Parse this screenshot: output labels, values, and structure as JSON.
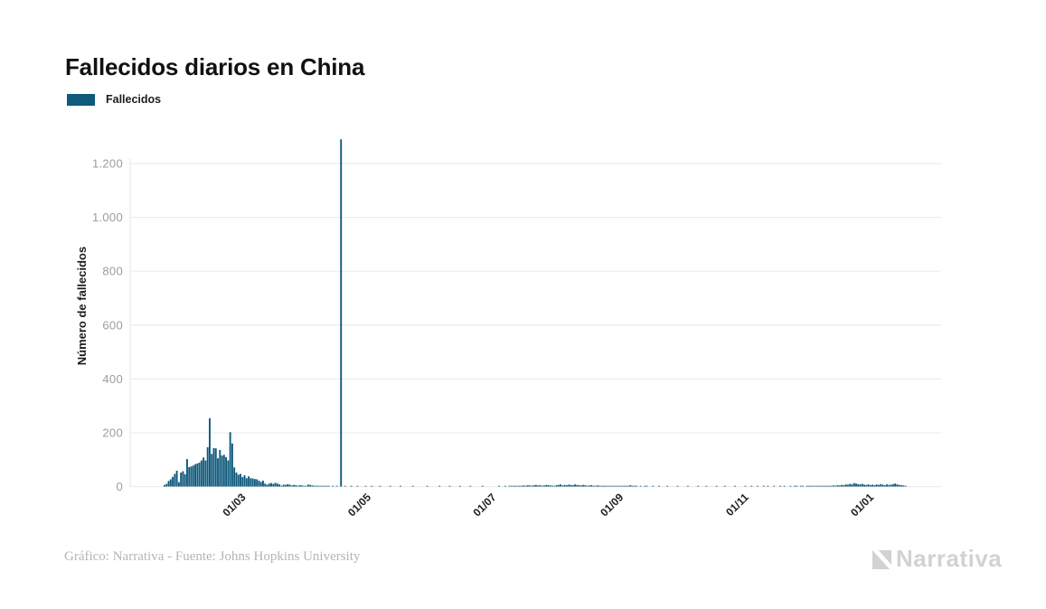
{
  "header": {
    "title": "Fallecidos diarios en China"
  },
  "legend": {
    "label": "Fallecidos",
    "swatch_color": "#0f597c"
  },
  "y_axis": {
    "title": "Número de fallecidos"
  },
  "footer": {
    "credit": "Gráfico: Narrativa - Fuente: Johns Hopkins University",
    "logo_text": "Narrativa",
    "logo_icon": "narrativa-n-mark",
    "logo_color": "#d2d2d2"
  },
  "chart_data": {
    "type": "bar",
    "title": "Fallecidos diarios en China",
    "xlabel": "",
    "ylabel": "Número de fallecidos",
    "series_name": "Fallecidos",
    "bar_color": "#0f597c",
    "grid": true,
    "legend_position": "top-left",
    "ylim": [
      0,
      1320
    ],
    "yticks": {
      "values": [
        0,
        200,
        400,
        600,
        800,
        1000,
        1200
      ],
      "labels": [
        "0",
        "200",
        "400",
        "600",
        "800",
        "1.000",
        "1.200"
      ]
    },
    "x_start_date": "2020-01-22",
    "xticks": [
      {
        "label": "01/03",
        "day": 39
      },
      {
        "label": "01/05",
        "day": 100
      },
      {
        "label": "01/07",
        "day": 161
      },
      {
        "label": "01/09",
        "day": 223
      },
      {
        "label": "01/11",
        "day": 284
      },
      {
        "label": "01/01",
        "day": 345
      }
    ],
    "peak_value": 1290,
    "peak_date": "2020-04-17",
    "values": [
      6,
      10,
      21,
      27,
      36,
      47,
      59,
      16,
      52,
      57,
      46,
      102,
      72,
      75,
      78,
      83,
      86,
      89,
      97,
      108,
      97,
      146,
      254,
      121,
      143,
      142,
      105,
      136,
      115,
      118,
      109,
      97,
      202,
      160,
      71,
      52,
      44,
      47,
      35,
      42,
      31,
      38,
      31,
      30,
      28,
      27,
      22,
      17,
      22,
      11,
      7,
      11,
      13,
      10,
      14,
      11,
      8,
      3,
      7,
      6,
      9,
      7,
      4,
      6,
      5,
      3,
      5,
      4,
      2,
      1,
      7,
      6,
      4,
      3,
      1,
      2,
      1,
      2,
      1,
      1,
      2,
      0,
      1,
      0,
      1,
      0,
      1290,
      0,
      1,
      0,
      0,
      1,
      0,
      0,
      1,
      0,
      0,
      0,
      1,
      0,
      0,
      1,
      0,
      0,
      0,
      1,
      0,
      0,
      0,
      0,
      1,
      0,
      0,
      0,
      0,
      1,
      0,
      0,
      0,
      0,
      0,
      1,
      0,
      0,
      0,
      0,
      0,
      0,
      1,
      0,
      0,
      0,
      0,
      0,
      1,
      0,
      0,
      0,
      0,
      1,
      0,
      0,
      0,
      0,
      1,
      0,
      0,
      0,
      0,
      1,
      0,
      0,
      0,
      0,
      0,
      1,
      0,
      0,
      0,
      0,
      0,
      0,
      0,
      1,
      0,
      0,
      1,
      0,
      1,
      2,
      1,
      1,
      2,
      3,
      2,
      4,
      3,
      5,
      4,
      3,
      5,
      6,
      4,
      5,
      3,
      4,
      6,
      5,
      4,
      3,
      2,
      5,
      6,
      8,
      4,
      6,
      5,
      7,
      6,
      5,
      8,
      6,
      5,
      4,
      6,
      5,
      3,
      4,
      5,
      3,
      2,
      4,
      3,
      2,
      3,
      2,
      1,
      2,
      1,
      2,
      1,
      1,
      2,
      1,
      3,
      1,
      2,
      5,
      1,
      2,
      1,
      0,
      1,
      0,
      1,
      1,
      0,
      0,
      1,
      0,
      0,
      1,
      0,
      0,
      0,
      1,
      0,
      0,
      0,
      0,
      1,
      0,
      0,
      0,
      0,
      1,
      0,
      0,
      0,
      0,
      1,
      0,
      0,
      0,
      1,
      0,
      0,
      0,
      0,
      1,
      0,
      0,
      0,
      1,
      0,
      0,
      0,
      0,
      1,
      0,
      0,
      0,
      0,
      1,
      0,
      0,
      1,
      0,
      0,
      1,
      0,
      0,
      1,
      0,
      1,
      0,
      0,
      1,
      0,
      0,
      1,
      0,
      1,
      0,
      0,
      1,
      0,
      1,
      1,
      0,
      1,
      1,
      0,
      1,
      1,
      2,
      1,
      1,
      2,
      1,
      3,
      2,
      1,
      2,
      3,
      2,
      4,
      3,
      5,
      4,
      6,
      5,
      8,
      7,
      10,
      8,
      13,
      11,
      9,
      8,
      10,
      7,
      6,
      8,
      5,
      7,
      5,
      8,
      6,
      9,
      7,
      5,
      8,
      6,
      7,
      9,
      11,
      8,
      6,
      5,
      4,
      3
    ]
  }
}
